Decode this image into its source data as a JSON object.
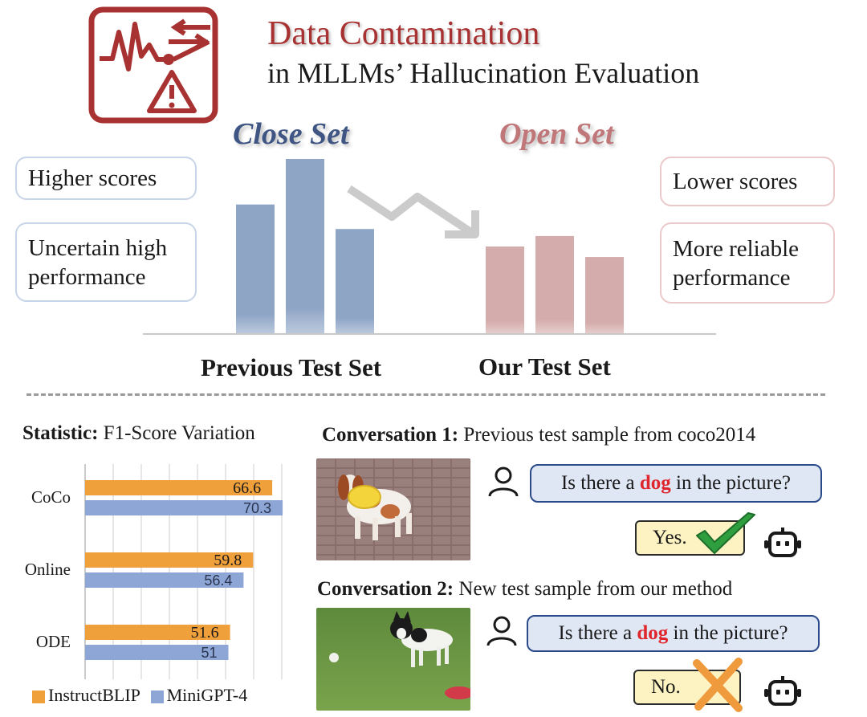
{
  "header": {
    "title": "Data Contamination",
    "subtitle": "in MLLMs’ Hallucination Evaluation",
    "logo_icon": "data-warning-icon",
    "accent_color": "#a83232"
  },
  "concept": {
    "close_set_label": "Close Set",
    "open_set_label": "Open Set",
    "left_notes": [
      "Higher scores",
      "Uncertain high performance"
    ],
    "right_notes": [
      "Lower scores",
      "More reliable performance"
    ],
    "previous_label": "Previous Test Set",
    "our_label": "Our Test Set",
    "previous_bar_levels": [
      0.74,
      1.0,
      0.6
    ],
    "our_bar_levels": [
      0.5,
      0.56,
      0.44
    ],
    "previous_color": "#8fa5c6",
    "our_color": "#d4acab",
    "arrow_icon": "zigzag-down-arrow-icon"
  },
  "statistic": {
    "title_bold": "Statistic:",
    "title_rest": "F1-Score Variation"
  },
  "chart_data": {
    "type": "bar",
    "orientation": "horizontal",
    "categories": [
      "CoCo",
      "Online",
      "ODE"
    ],
    "series": [
      {
        "name": "InstructBLIP",
        "values": [
          66.6,
          59.8,
          51.6
        ],
        "color": "#f0a03a"
      },
      {
        "name": "MiniGPT-4",
        "values": [
          70.3,
          56.4,
          51
        ],
        "color": "#8ea6d5"
      }
    ],
    "value_labels": [
      [
        "66.6",
        "59.8",
        "51.6"
      ],
      [
        "70.3",
        "56.4",
        "51"
      ]
    ],
    "xlim": [
      0,
      80
    ],
    "grid": true,
    "legend": "bottom"
  },
  "conversations": [
    {
      "label_bold": "Conversation 1:",
      "label_rest": "Previous test sample from coco2014",
      "question_pre": "Is there a",
      "question_kw": "dog",
      "question_post": "in the picture?",
      "answer": "Yes.",
      "answer_mark": "check-icon",
      "image": "dog-with-frisbee-photo"
    },
    {
      "label_bold": "Conversation 2:",
      "label_rest": "New test sample from our method",
      "question_pre": "Is there a",
      "question_kw": "dog",
      "question_post": "in the picture?",
      "answer": "No.",
      "answer_mark": "cross-icon",
      "image": "dog-on-grass-photo"
    }
  ],
  "icons": {
    "user": "user-icon",
    "bot": "robot-icon"
  }
}
